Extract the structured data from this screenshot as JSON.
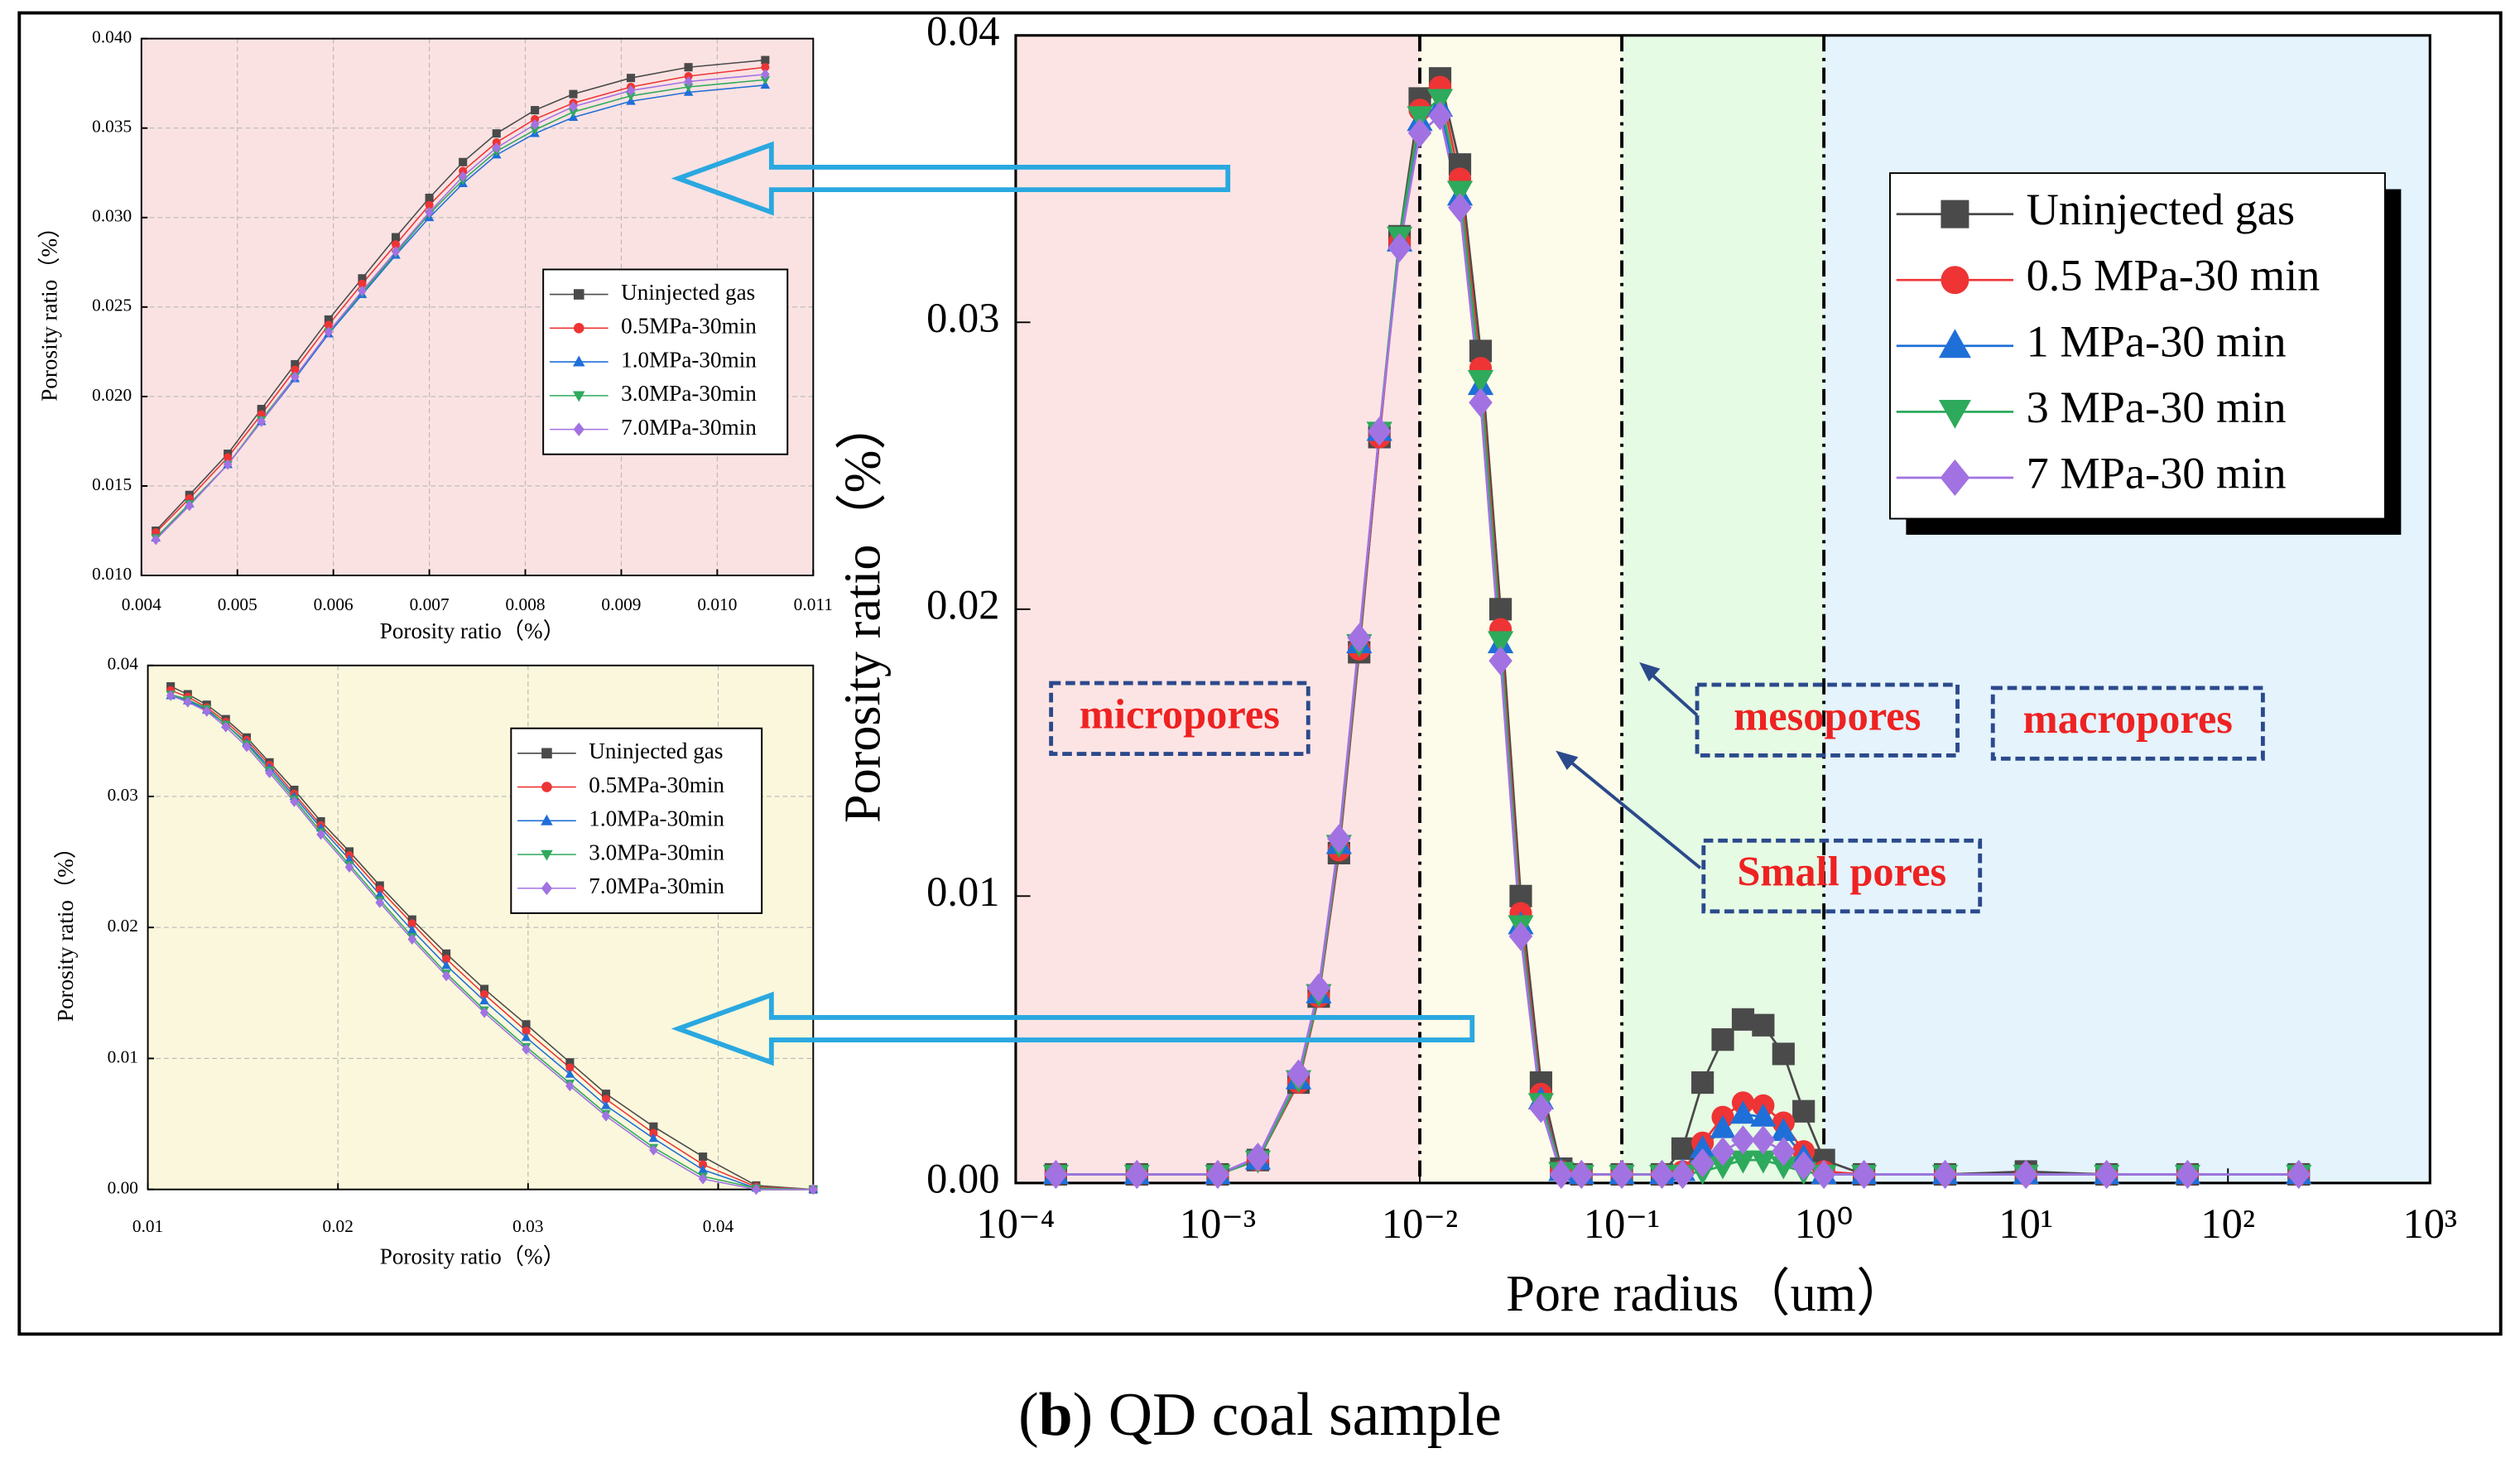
{
  "caption": [
    "(",
    "b",
    ") QD coal sample"
  ],
  "chart_data": [
    {
      "type": "line",
      "log_x": true,
      "grid": false,
      "legend": "upper right",
      "xlabel": "Pore radius（um）",
      "ylabel": "Porosity ratio（%）",
      "xlim": [
        0.0001,
        1000
      ],
      "ylim": [
        0,
        0.04
      ],
      "xticks": [
        {
          "value": 0.0001,
          "label": "10⁻⁴"
        },
        {
          "value": 0.001,
          "label": "10⁻³"
        },
        {
          "value": 0.01,
          "label": "10⁻²"
        },
        {
          "value": 0.1,
          "label": "10⁻¹"
        },
        {
          "value": 1,
          "label": "10⁰"
        },
        {
          "value": 10,
          "label": "10¹"
        },
        {
          "value": 100,
          "label": "10²"
        },
        {
          "value": 1000,
          "label": "10³"
        }
      ],
      "yticks": [
        {
          "value": 0,
          "label": "0.00"
        },
        0.01,
        0.02,
        0.03,
        0.04
      ],
      "regions": [
        {
          "xlim": [
            0.0001,
            0.01
          ],
          "color": "#fde4e4"
        },
        {
          "xlim": [
            0.01,
            0.1
          ],
          "color": "#fdfbe9"
        },
        {
          "xlim": [
            0.1,
            1
          ],
          "color": "#e6fbe4"
        },
        {
          "xlim": [
            1,
            1000
          ],
          "color": "#e4f3fc"
        }
      ],
      "annotations": [
        "micropores",
        "mesopores",
        "macropores",
        "Small pores"
      ],
      "x": [
        0.000158,
        0.000398,
        0.001,
        0.00158,
        0.00251,
        0.00316,
        0.00398,
        0.00501,
        0.00631,
        0.00794,
        0.01,
        0.0126,
        0.0158,
        0.02,
        0.0251,
        0.0316,
        0.0398,
        0.0501,
        0.0631,
        0.1,
        0.158,
        0.2,
        0.251,
        0.316,
        0.398,
        0.501,
        0.631,
        0.794,
        1,
        1.58,
        3.98,
        10,
        25.1,
        63.1,
        224
      ],
      "series": [
        {
          "name": "Uninjected gas",
          "color": "#4a4a4a",
          "marker": "square",
          "values": [
            0.0003,
            0.0003,
            0.0003,
            0.0008,
            0.0035,
            0.0065,
            0.0115,
            0.0185,
            0.026,
            0.033,
            0.0378,
            0.0385,
            0.0355,
            0.029,
            0.02,
            0.01,
            0.0035,
            0.0005,
            0.0003,
            0.0003,
            0.0003,
            0.0012,
            0.0035,
            0.005,
            0.0057,
            0.0055,
            0.0045,
            0.0025,
            0.0008,
            0.0003,
            0.0003,
            0.0004,
            0.0003,
            0.0003,
            0.0003
          ]
        },
        {
          "name": "0.5 MPa-30 min",
          "color": "#ee3434",
          "marker": "circle",
          "values": [
            0.0003,
            0.0003,
            0.0003,
            0.0008,
            0.0035,
            0.0065,
            0.0116,
            0.0186,
            0.026,
            0.0328,
            0.0374,
            0.0382,
            0.035,
            0.0284,
            0.0193,
            0.0094,
            0.0031,
            0.0004,
            0.0003,
            0.0003,
            0.0003,
            0.0004,
            0.0014,
            0.0023,
            0.0028,
            0.0027,
            0.0021,
            0.0011,
            0.0004,
            0.0003,
            0.0003,
            0.0003,
            0.0003,
            0.0003,
            0.0003
          ]
        },
        {
          "name": "1 MPa-30 min",
          "color": "#1f6fd8",
          "marker": "triangle-up",
          "values": [
            0.0003,
            0.0003,
            0.0003,
            0.0008,
            0.0036,
            0.0066,
            0.0118,
            0.0188,
            0.0262,
            0.0328,
            0.037,
            0.0375,
            0.0344,
            0.0278,
            0.0188,
            0.009,
            0.0029,
            0.0004,
            0.0003,
            0.0003,
            0.0003,
            0.0004,
            0.0012,
            0.0019,
            0.0024,
            0.0023,
            0.0018,
            0.0009,
            0.0003,
            0.0003,
            0.0003,
            0.0003,
            0.0003,
            0.0003,
            0.0003
          ]
        },
        {
          "name": "3 MPa-30 min",
          "color": "#2eaa5c",
          "marker": "triangle-down",
          "values": [
            0.0003,
            0.0003,
            0.0003,
            0.0008,
            0.0036,
            0.0066,
            0.0118,
            0.0188,
            0.0262,
            0.033,
            0.0372,
            0.0378,
            0.0346,
            0.028,
            0.0189,
            0.009,
            0.0028,
            0.0004,
            0.0003,
            0.0003,
            0.0003,
            0.0003,
            0.0004,
            0.0006,
            0.0008,
            0.0008,
            0.0006,
            0.0004,
            0.0003,
            0.0003,
            0.0003,
            0.0003,
            0.0003,
            0.0003,
            0.0003
          ]
        },
        {
          "name": "7 MPa-30 min",
          "color": "#a272e2",
          "marker": "diamond",
          "values": [
            0.0003,
            0.0003,
            0.0003,
            0.0009,
            0.0038,
            0.0068,
            0.012,
            0.019,
            0.0262,
            0.0326,
            0.0366,
            0.0372,
            0.034,
            0.0272,
            0.0182,
            0.0086,
            0.0026,
            0.0003,
            0.0003,
            0.0003,
            0.0003,
            0.0003,
            0.0007,
            0.0011,
            0.0015,
            0.0015,
            0.0011,
            0.0006,
            0.0003,
            0.0003,
            0.0003,
            0.0003,
            0.0003,
            0.0003,
            0.0003
          ]
        }
      ]
    },
    {
      "type": "line",
      "log_x": false,
      "grid": true,
      "legend": "center right",
      "background": "#fbe2e2",
      "xlabel": "Porosity ratio（%）",
      "ylabel": "Porosity ratio（%）",
      "xlim": [
        0.004,
        0.011
      ],
      "ylim": [
        0.01,
        0.04
      ],
      "xticks": [
        0.004,
        0.005,
        0.006,
        0.007,
        0.008,
        0.009,
        {
          "value": 0.01,
          "label": "0.010"
        },
        0.011
      ],
      "yticks": [
        {
          "value": 0.01,
          "label": "0.010"
        },
        0.015,
        {
          "value": 0.02,
          "label": "0.020"
        },
        0.025,
        {
          "value": 0.03,
          "label": "0.030"
        },
        0.035,
        {
          "value": 0.04,
          "label": "0.040"
        }
      ],
      "x": [
        0.00415,
        0.0045,
        0.0049,
        0.00525,
        0.0056,
        0.00595,
        0.0063,
        0.00665,
        0.007,
        0.00735,
        0.0077,
        0.0081,
        0.0085,
        0.0091,
        0.0097,
        0.0105
      ],
      "series": [
        {
          "name": "Uninjected gas",
          "color": "#4a4a4a",
          "marker": "square",
          "values": [
            0.0125,
            0.0145,
            0.0168,
            0.0193,
            0.0218,
            0.0243,
            0.0266,
            0.0289,
            0.0311,
            0.0331,
            0.0347,
            0.036,
            0.0369,
            0.0378,
            0.0384,
            0.0388
          ]
        },
        {
          "name": "0.5MPa-30min",
          "color": "#ee3434",
          "marker": "circle",
          "values": [
            0.0124,
            0.0143,
            0.0166,
            0.019,
            0.0215,
            0.024,
            0.0263,
            0.0285,
            0.0307,
            0.0326,
            0.0342,
            0.0355,
            0.0364,
            0.0373,
            0.0379,
            0.0384
          ]
        },
        {
          "name": "1.0MPa-30min",
          "color": "#1f6fd8",
          "marker": "triangle-up",
          "values": [
            0.0121,
            0.014,
            0.0162,
            0.0186,
            0.021,
            0.0235,
            0.0257,
            0.0279,
            0.03,
            0.0319,
            0.0335,
            0.0347,
            0.0356,
            0.0365,
            0.037,
            0.0374
          ]
        },
        {
          "name": "3.0MPa-30min",
          "color": "#2eaa5c",
          "marker": "triangle-down",
          "values": [
            0.0121,
            0.014,
            0.0162,
            0.0187,
            0.0211,
            0.0236,
            0.0258,
            0.028,
            0.0302,
            0.0321,
            0.0337,
            0.0349,
            0.0359,
            0.0368,
            0.0373,
            0.0377
          ]
        },
        {
          "name": "7.0MPa-30min",
          "color": "#a272e2",
          "marker": "diamond",
          "values": [
            0.012,
            0.0139,
            0.0162,
            0.0186,
            0.0211,
            0.0236,
            0.0259,
            0.0281,
            0.0303,
            0.0323,
            0.0339,
            0.0352,
            0.0362,
            0.0371,
            0.0376,
            0.038
          ]
        }
      ]
    },
    {
      "type": "line",
      "log_x": false,
      "grid": true,
      "legend": "upper right",
      "background": "#faf7dc",
      "xlabel": "Porosity ratio（%）",
      "ylabel": "Porosity ratio（%）",
      "xlim": [
        0.01,
        0.045
      ],
      "ylim": [
        0,
        0.04
      ],
      "xticks": [
        0.01,
        0.02,
        0.03,
        0.04
      ],
      "yticks": [
        {
          "value": 0,
          "label": "0.00"
        },
        0.01,
        0.02,
        0.03,
        0.04
      ],
      "x": [
        0.0112,
        0.0121,
        0.0131,
        0.0141,
        0.0152,
        0.0164,
        0.0177,
        0.0191,
        0.0206,
        0.0222,
        0.0239,
        0.0257,
        0.0277,
        0.0299,
        0.0322,
        0.0341,
        0.0366,
        0.0392,
        0.042,
        0.045
      ],
      "series": [
        {
          "name": "Uninjected gas",
          "color": "#4a4a4a",
          "marker": "square",
          "values": [
            0.0384,
            0.0378,
            0.037,
            0.0359,
            0.0345,
            0.0326,
            0.0305,
            0.0281,
            0.0258,
            0.0232,
            0.0206,
            0.018,
            0.0153,
            0.0126,
            0.0097,
            0.0073,
            0.0048,
            0.0025,
            0.0003,
            0
          ]
        },
        {
          "name": "0.5MPa-30min",
          "color": "#ee3434",
          "marker": "circle",
          "values": [
            0.0381,
            0.0376,
            0.0368,
            0.0357,
            0.0343,
            0.0324,
            0.0302,
            0.0278,
            0.0255,
            0.0229,
            0.0203,
            0.0176,
            0.0149,
            0.0121,
            0.0093,
            0.0069,
            0.0043,
            0.0019,
            0.0002,
            0
          ]
        },
        {
          "name": "1.0MPa-30min",
          "color": "#1f6fd8",
          "marker": "triangle-up",
          "values": [
            0.0377,
            0.0373,
            0.0366,
            0.0355,
            0.0341,
            0.0322,
            0.03,
            0.0276,
            0.0252,
            0.0225,
            0.0198,
            0.0171,
            0.0144,
            0.0116,
            0.0088,
            0.0064,
            0.0039,
            0.0015,
            0.0001,
            0
          ]
        },
        {
          "name": "3.0MPa-30min",
          "color": "#2eaa5c",
          "marker": "triangle-down",
          "values": [
            0.0378,
            0.0374,
            0.0367,
            0.0355,
            0.034,
            0.032,
            0.0298,
            0.0273,
            0.0248,
            0.0221,
            0.0193,
            0.0165,
            0.0137,
            0.0109,
            0.0081,
            0.0058,
            0.0032,
            0.001,
            0.0001,
            0
          ]
        },
        {
          "name": "7.0MPa-30min",
          "color": "#a272e2",
          "marker": "diamond",
          "values": [
            0.0377,
            0.0372,
            0.0365,
            0.0353,
            0.0338,
            0.0318,
            0.0296,
            0.0271,
            0.0246,
            0.0219,
            0.0191,
            0.0163,
            0.0135,
            0.0107,
            0.0079,
            0.0056,
            0.003,
            0.0008,
            0,
            0
          ]
        }
      ]
    }
  ]
}
